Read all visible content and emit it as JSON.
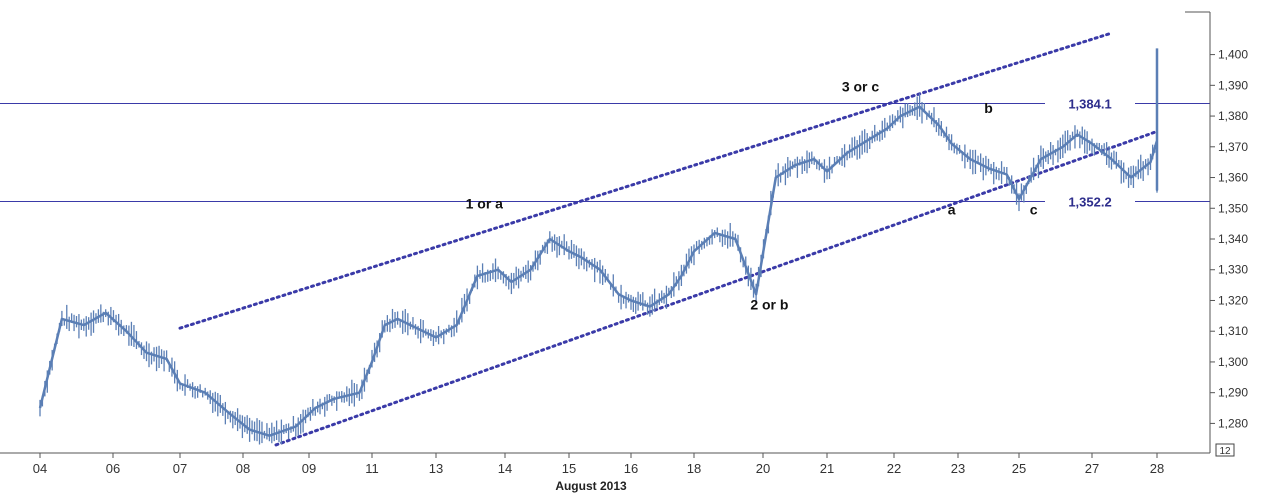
{
  "chart_data": {
    "type": "line",
    "month_label": "August 2013",
    "x_ticks": [
      "04",
      "06",
      "07",
      "08",
      "09",
      "11",
      "13",
      "14",
      "15",
      "16",
      "18",
      "20",
      "21",
      "22",
      "23",
      "25",
      "27",
      "28"
    ],
    "y_ticks": [
      "1,400",
      "1,390",
      "1,380",
      "1,370",
      "1,360",
      "1,350",
      "1,340",
      "1,330",
      "1,320",
      "1,310",
      "1,300",
      "1,290",
      "1,280"
    ],
    "ylim": [
      1272,
      1408
    ],
    "badge": "12",
    "series": [
      {
        "x": [
          0,
          0.3,
          0.6,
          0.9,
          1.2,
          1.5,
          1.8,
          2.0,
          2.4,
          2.8,
          3.1,
          3.4,
          3.8,
          4.1,
          4.4,
          4.8,
          5.0,
          5.2,
          5.4,
          5.8,
          6.0,
          6.3,
          6.6,
          6.9,
          7.1,
          7.4,
          7.7,
          8.0,
          8.2,
          8.5,
          8.8,
          9.0,
          9.3,
          9.6,
          9.8,
          10.0,
          10.3,
          10.6,
          10.9,
          11.2,
          11.5,
          11.8,
          12.0,
          12.3,
          12.6,
          12.9,
          13.1,
          13.4,
          13.7,
          13.9,
          14.2,
          14.5,
          14.8,
          15.0,
          15.3,
          15.6,
          15.8,
          16.0,
          16.3,
          16.6,
          16.9,
          17.1,
          17.4,
          17.7,
          17.9,
          18.2,
          18.5,
          18.8,
          19.1,
          19.3
        ],
        "values": [
          1285,
          1314,
          1312,
          1316,
          1310,
          1303,
          1301,
          1293,
          1290,
          1283,
          1278,
          1276,
          1279,
          1285,
          1288,
          1290,
          1300,
          1312,
          1314,
          1310,
          1308,
          1312,
          1328,
          1330,
          1326,
          1330,
          1340,
          1336,
          1334,
          1330,
          1322,
          1320,
          1318,
          1322,
          1328,
          1336,
          1342,
          1340,
          1322,
          1360,
          1364,
          1366,
          1362,
          1368,
          1372,
          1376,
          1380,
          1383,
          1377,
          1371,
          1366,
          1363,
          1361,
          1353,
          1366,
          1370,
          1374,
          1371,
          1366,
          1360,
          1365,
          1372,
          1366,
          1362,
          1356,
          1366,
          1372,
          1377,
          1374,
          1402
        ]
      }
    ],
    "horizontal_levels": [
      {
        "label": "1,384.1",
        "value": 1384.1
      },
      {
        "label": "1,352.2",
        "value": 1352.2
      }
    ],
    "channel": {
      "upper": {
        "x1": 2.0,
        "y1": 1311,
        "x2": 16.3,
        "y2": 1407
      },
      "lower": {
        "x1": 3.5,
        "y1": 1273,
        "x2": 17.0,
        "y2": 1375
      }
    },
    "annotations": [
      {
        "text": "3 or c",
        "x": 12.5,
        "y": 1388
      },
      {
        "text": "1 or a",
        "x": 6.7,
        "y": 1350
      },
      {
        "text": "2 or b",
        "x": 11.1,
        "y": 1317
      },
      {
        "text": "a",
        "x": 13.9,
        "y": 1348
      },
      {
        "text": "b",
        "x": 14.5,
        "y": 1381
      },
      {
        "text": "c",
        "x": 15.2,
        "y": 1348
      }
    ],
    "colors": {
      "price": "#5b7fb5",
      "level": "#3a3aa8",
      "channel": "#3a3aa8",
      "axis": "#555555"
    }
  }
}
